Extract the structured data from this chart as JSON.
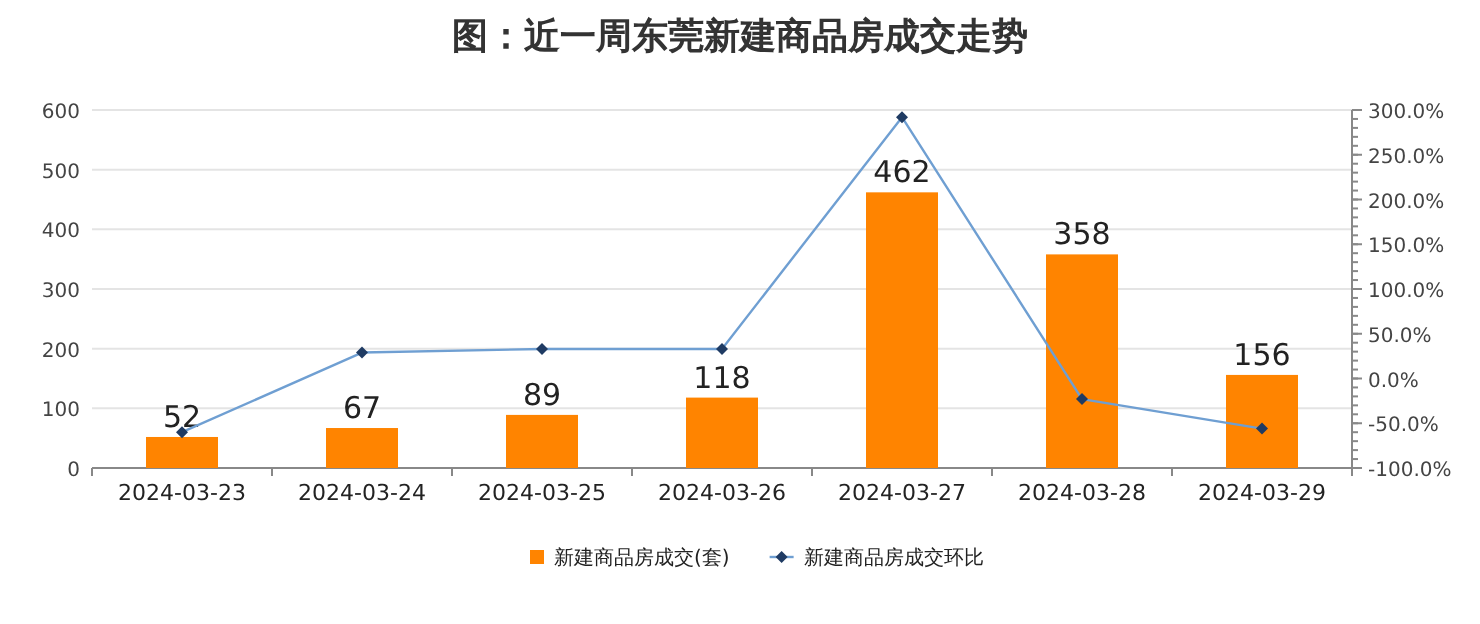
{
  "chart_data": {
    "type": "bar",
    "title": "图：近一周东莞新建商品房成交走势",
    "categories": [
      "2024-03-23",
      "2024-03-24",
      "2024-03-25",
      "2024-03-26",
      "2024-03-27",
      "2024-03-28",
      "2024-03-29"
    ],
    "series": [
      {
        "name": "新建商品房成交(套)",
        "color": "#ff8400",
        "values": [
          52,
          67,
          89,
          118,
          462,
          358,
          156
        ],
        "value_labels": [
          "52",
          "67",
          "89",
          "118",
          "462",
          "358",
          "156"
        ]
      },
      {
        "name": "新建商品房成交环比",
        "type": "line",
        "axis": "y2",
        "color": "#6f9fd2",
        "marker": "diamond",
        "values": [
          -60,
          29,
          33,
          33,
          292,
          -23,
          -56
        ]
      }
    ],
    "ylim": [
      0,
      600
    ],
    "yticks": [
      0,
      100,
      200,
      300,
      400,
      500,
      600
    ],
    "y2lim": [
      -100,
      300
    ],
    "y2ticks": [
      {
        "value": -100,
        "label": "-100.0%"
      },
      {
        "value": -50,
        "label": "-50.0%"
      },
      {
        "value": 0,
        "label": "0.0%"
      },
      {
        "value": 50,
        "label": "50.0%"
      },
      {
        "value": 100,
        "label": "100.0%"
      },
      {
        "value": 150,
        "label": "150.0%"
      },
      {
        "value": 200,
        "label": "200.0%"
      },
      {
        "value": 250,
        "label": "250.0%"
      },
      {
        "value": 300,
        "label": "300.0%"
      }
    ],
    "grid": "y",
    "legend": "bottom"
  }
}
